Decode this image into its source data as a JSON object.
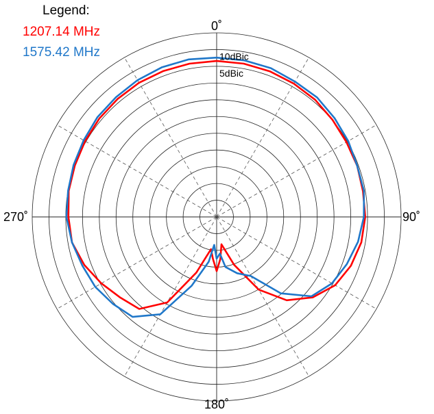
{
  "chart_data": {
    "type": "polar-line",
    "title": "",
    "legend": {
      "title": "Legend:",
      "placement": "top-left"
    },
    "angle_axis": {
      "zero": "top",
      "direction": "clockwise",
      "labels": [
        {
          "angle": 0,
          "text": "0˚"
        },
        {
          "angle": 90,
          "text": "90˚"
        },
        {
          "angle": 180,
          "text": "180˚"
        },
        {
          "angle": 270,
          "text": "270˚"
        }
      ],
      "spoke_step_deg": 30
    },
    "radial_axis": {
      "unit": "dBic",
      "range": [
        -40,
        15
      ],
      "step": 5,
      "labels": [
        {
          "value": 10,
          "text": "10dBic"
        },
        {
          "value": 5,
          "text": "5dBic"
        }
      ]
    },
    "series": [
      {
        "name": "1207.14 MHz",
        "color": "#ff0000",
        "points": [
          [
            0,
            6.6
          ],
          [
            10,
            6.5
          ],
          [
            20,
            6.3
          ],
          [
            30,
            6.0
          ],
          [
            40,
            5.7
          ],
          [
            50,
            5.1
          ],
          [
            60,
            4.7
          ],
          [
            70,
            4.6
          ],
          [
            80,
            4.3
          ],
          [
            90,
            4.3
          ],
          [
            100,
            3.8
          ],
          [
            110,
            2.6
          ],
          [
            120,
            0.8
          ],
          [
            130,
            -2.6
          ],
          [
            140,
            -7.5
          ],
          [
            150,
            -14.9
          ],
          [
            160,
            -24.8
          ],
          [
            170,
            -31.7
          ],
          [
            175,
            -27.4
          ],
          [
            180,
            -23.8
          ],
          [
            185,
            -27.4
          ],
          [
            190,
            -30.2
          ],
          [
            200,
            -22.3
          ],
          [
            210,
            -10.5
          ],
          [
            220,
            -4.1
          ],
          [
            230,
            -2.5
          ],
          [
            240,
            -0.3
          ],
          [
            250,
            2.0
          ],
          [
            260,
            3.8
          ],
          [
            270,
            4.2
          ],
          [
            280,
            4.8
          ],
          [
            290,
            5.0
          ],
          [
            300,
            5.3
          ],
          [
            310,
            5.7
          ],
          [
            320,
            6.0
          ],
          [
            330,
            6.3
          ],
          [
            340,
            6.4
          ],
          [
            350,
            6.5
          ]
        ]
      },
      {
        "name": "1575.42 MHz",
        "color": "#1f77c9",
        "points": [
          [
            0,
            7.6
          ],
          [
            10,
            7.5
          ],
          [
            20,
            7.3
          ],
          [
            30,
            6.7
          ],
          [
            40,
            6.6
          ],
          [
            50,
            5.9
          ],
          [
            60,
            5.3
          ],
          [
            70,
            4.6
          ],
          [
            80,
            4.6
          ],
          [
            90,
            3.9
          ],
          [
            100,
            2.8
          ],
          [
            110,
            1.3
          ],
          [
            120,
            -0.3
          ],
          [
            130,
            -3.1
          ],
          [
            140,
            -10.2
          ],
          [
            150,
            -19.6
          ],
          [
            160,
            -22.1
          ],
          [
            170,
            -24.8
          ],
          [
            175,
            -29.0
          ],
          [
            180,
            -27.5
          ],
          [
            185,
            -31.6
          ],
          [
            190,
            -26.4
          ],
          [
            200,
            -18.1
          ],
          [
            210,
            -6.4
          ],
          [
            220,
            -1.0
          ],
          [
            230,
            0.4
          ],
          [
            240,
            1.8
          ],
          [
            250,
            2.6
          ],
          [
            260,
            3.8
          ],
          [
            270,
            4.8
          ],
          [
            280,
            5.0
          ],
          [
            290,
            5.4
          ],
          [
            300,
            5.8
          ],
          [
            310,
            6.4
          ],
          [
            320,
            6.7
          ],
          [
            330,
            7.2
          ],
          [
            340,
            7.6
          ],
          [
            350,
            7.8
          ]
        ]
      }
    ]
  }
}
